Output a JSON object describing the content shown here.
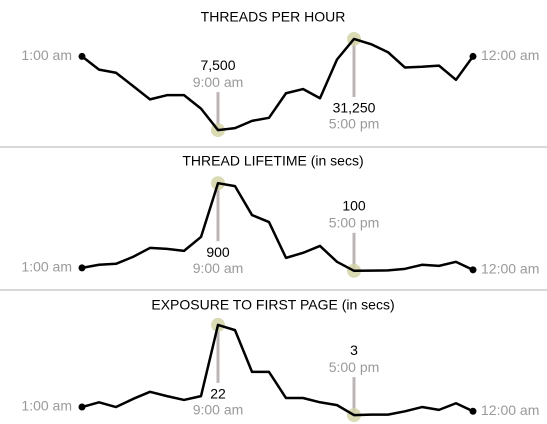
{
  "chart_data": [
    {
      "type": "line",
      "title": "THREADS PER HOUR",
      "categories": [
        "1:00 am",
        null,
        null,
        null,
        null,
        null,
        null,
        null,
        "9:00 am",
        null,
        null,
        null,
        null,
        null,
        null,
        null,
        "5:00 pm",
        null,
        null,
        null,
        null,
        null,
        null,
        "12:00 am"
      ],
      "values": [
        26700,
        23250,
        22450,
        19000,
        15500,
        16600,
        16600,
        13100,
        7500,
        8000,
        9900,
        10700,
        17100,
        18200,
        15800,
        25900,
        31250,
        29900,
        27800,
        23800,
        24000,
        24300,
        20600,
        26700
      ],
      "value_labels": [
        null,
        null,
        null,
        null,
        null,
        null,
        null,
        null,
        "7,500",
        null,
        null,
        null,
        null,
        null,
        null,
        null,
        "31,250",
        null,
        null,
        null,
        null,
        null,
        null,
        null
      ],
      "ylim": [
        7000,
        31500
      ],
      "color": "#000000"
    },
    {
      "type": "line",
      "title": "THREAD LIFETIME (in secs)",
      "categories": [
        "1:00 am",
        null,
        null,
        null,
        null,
        null,
        null,
        null,
        "9:00 am",
        null,
        null,
        null,
        null,
        null,
        null,
        null,
        "5:00 pm",
        null,
        null,
        null,
        null,
        null,
        null,
        "12:00 am"
      ],
      "values": [
        127,
        155,
        164,
        227,
        309,
        300,
        282,
        409,
        900,
        873,
        609,
        545,
        218,
        264,
        327,
        182,
        100,
        102,
        104,
        118,
        155,
        145,
        182,
        109
      ],
      "ylim": [
        80,
        920
      ],
      "color": "#000000"
    },
    {
      "type": "line",
      "title": "EXPOSURE TO FIRST PAGE (in secs)",
      "categories": [
        "1:00 am",
        null,
        null,
        null,
        null,
        null,
        null,
        null,
        "9:00 am",
        null,
        null,
        null,
        null,
        null,
        null,
        null,
        "5:00 pm",
        null,
        null,
        null,
        null,
        null,
        null,
        "12:00 am"
      ],
      "values": [
        4.7,
        5.7,
        4.7,
        6.4,
        7.9,
        7,
        6.2,
        7,
        22,
        20.9,
        12.1,
        12.1,
        6.6,
        6.6,
        5.7,
        5.1,
        3,
        3.1,
        3.1,
        3.8,
        4.7,
        4.1,
        5.5,
        3.8
      ],
      "ylim": [
        2.6,
        22.4
      ],
      "color": "#000000"
    }
  ]
}
